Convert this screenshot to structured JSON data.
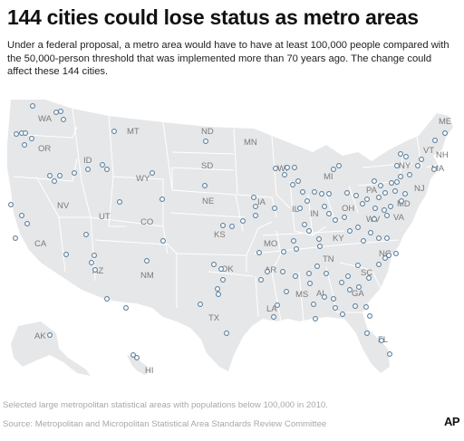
{
  "header": {
    "title": "144 cities could lose status as metro areas",
    "subtitle": "Under a federal proposal, a metro area would have to have at least 100,000 people compared with the 50,000-person threshold that was implemented more than 70 years ago. The change could affect these 144 cities."
  },
  "map": {
    "colors": {
      "land": "#e6e7e9",
      "border": "#ffffff",
      "city_marker": "#5a7f9d",
      "label": "#7a7a7a"
    },
    "state_labels": [
      "WA",
      "OR",
      "MT",
      "ND",
      "ID",
      "SD",
      "WY",
      "MN",
      "WI",
      "MI",
      "NV",
      "NE",
      "IA",
      "IL",
      "IN",
      "OH",
      "PA",
      "NY",
      "ME",
      "VT",
      "NH",
      "MA",
      "NJ",
      "UT",
      "CA",
      "CO",
      "KS",
      "MO",
      "KY",
      "WV",
      "VA",
      "MD",
      "NC",
      "TN",
      "AZ",
      "NM",
      "OK",
      "AR",
      "SC",
      "MS",
      "AL",
      "GA",
      "TX",
      "LA",
      "FL",
      "AK",
      "HI"
    ],
    "city_count": 144
  },
  "footer": {
    "footnote": "Selected large metropolitan statistical areas with populations below 100,000 in 2010.",
    "source": "Source: Metropolitan and Micropolitan Statistical Area Standards Review Committee",
    "logo": "AP"
  }
}
